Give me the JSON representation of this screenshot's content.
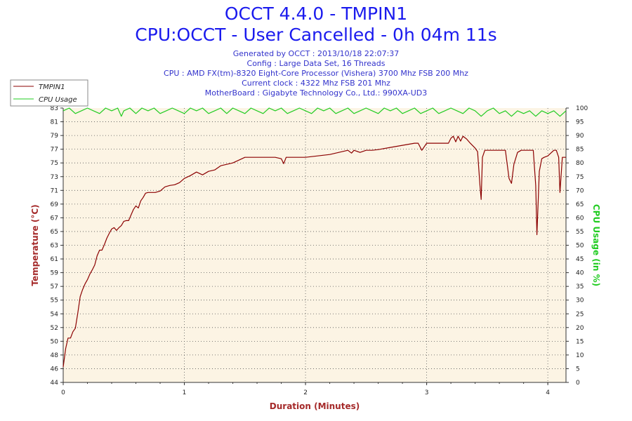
{
  "header": {
    "title": "OCCT 4.4.0 - TMPIN1",
    "subtitle": "CPU:OCCT - User Cancelled - 0h 04m 11s",
    "info": [
      "Generated by OCCT : 2013/10/18 22:07:37",
      "Config : Large Data Set, 16 Threads",
      "CPU : AMD FX(tm)-8320 Eight-Core Processor (Vishera) 3700 Mhz FSB 200 Mhz",
      "Current clock : 4322 Mhz FSB 201 Mhz",
      "MotherBoard : Gigabyte Technology Co., Ltd.: 990XA-UD3"
    ]
  },
  "colors": {
    "temperature": "#8b0000",
    "cpu_usage": "#22cc22",
    "plot_bg": "#fcf4e4",
    "title": "#1a1aee",
    "info": "#3333cc"
  },
  "chart_data": {
    "type": "line",
    "xlabel": "Duration (Minutes)",
    "ylabel": "Temperature (°C)",
    "y2label": "CPU Usage (in %)",
    "xlim": [
      0,
      4.15
    ],
    "ylim": [
      44,
      83
    ],
    "y2lim": [
      0,
      100
    ],
    "x_ticks": [
      "0",
      "1",
      "2",
      "3",
      "4"
    ],
    "y_ticks": [
      "44",
      "46",
      "48",
      "50",
      "52",
      "54",
      "55",
      "57",
      "59",
      "61",
      "63",
      "65",
      "67",
      "69",
      "71",
      "73",
      "75",
      "77",
      "79",
      "81",
      "83"
    ],
    "y2_ticks": [
      "0",
      "5",
      "10",
      "15",
      "20",
      "25",
      "30",
      "35",
      "40",
      "45",
      "50",
      "55",
      "60",
      "65",
      "70",
      "75",
      "80",
      "85",
      "90",
      "95",
      "100"
    ],
    "grid": true,
    "legend_position": "top-left",
    "series": [
      {
        "name": "TMPIN1",
        "axis": "left",
        "x": [
          0,
          0.02,
          0.04,
          0.06,
          0.08,
          0.1,
          0.12,
          0.14,
          0.16,
          0.18,
          0.2,
          0.22,
          0.24,
          0.26,
          0.28,
          0.3,
          0.32,
          0.34,
          0.36,
          0.38,
          0.4,
          0.42,
          0.44,
          0.46,
          0.48,
          0.5,
          0.52,
          0.54,
          0.56,
          0.58,
          0.6,
          0.62,
          0.64,
          0.66,
          0.68,
          0.7,
          0.72,
          0.74,
          0.76,
          0.8,
          0.84,
          0.88,
          0.92,
          0.96,
          1.0,
          1.05,
          1.1,
          1.15,
          1.2,
          1.25,
          1.3,
          1.35,
          1.4,
          1.45,
          1.5,
          1.55,
          1.6,
          1.65,
          1.7,
          1.75,
          1.8,
          1.82,
          1.84,
          1.9,
          1.95,
          2.0,
          2.1,
          2.2,
          2.3,
          2.35,
          2.38,
          2.4,
          2.45,
          2.5,
          2.55,
          2.6,
          2.7,
          2.8,
          2.9,
          2.93,
          2.96,
          3.0,
          3.05,
          3.1,
          3.15,
          3.18,
          3.2,
          3.22,
          3.24,
          3.26,
          3.28,
          3.3,
          3.33,
          3.36,
          3.4,
          3.42,
          3.44,
          3.45,
          3.46,
          3.48,
          3.5,
          3.55,
          3.6,
          3.65,
          3.68,
          3.7,
          3.72,
          3.75,
          3.78,
          3.8,
          3.85,
          3.88,
          3.9,
          3.91,
          3.93,
          3.95,
          3.97,
          4.0,
          4.05,
          4.07,
          4.09,
          4.1,
          4.12,
          4.15
        ],
        "y": [
          46.2,
          48.8,
          50.3,
          50.3,
          51.2,
          51.7,
          53.8,
          56.2,
          57.2,
          58.0,
          58.6,
          59.4,
          60.0,
          60.7,
          62.0,
          62.8,
          62.8,
          63.6,
          64.5,
          65.2,
          65.8,
          66.0,
          65.6,
          66.0,
          66.3,
          66.9,
          67.0,
          67.0,
          67.8,
          68.6,
          69.1,
          68.8,
          69.8,
          70.3,
          70.9,
          71.0,
          71.0,
          71.0,
          71.0,
          71.2,
          71.8,
          72.0,
          72.1,
          72.4,
          73.0,
          73.4,
          73.9,
          73.5,
          74.0,
          74.2,
          74.8,
          75.0,
          75.2,
          75.6,
          76.0,
          76.0,
          76.0,
          76.0,
          76.0,
          76.0,
          75.8,
          75.1,
          76.0,
          76.0,
          76.0,
          76.0,
          76.2,
          76.4,
          76.8,
          77.0,
          76.6,
          77.0,
          76.7,
          77.0,
          77.0,
          77.1,
          77.4,
          77.7,
          78.0,
          78.0,
          77.0,
          78.0,
          78.0,
          78.0,
          78.0,
          78.0,
          78.7,
          79.0,
          78.2,
          79.0,
          78.3,
          79.0,
          78.6,
          78.0,
          77.3,
          76.8,
          72.0,
          70.0,
          76.0,
          77.0,
          77.0,
          77.0,
          77.0,
          77.0,
          73.0,
          72.3,
          75.0,
          76.7,
          77.0,
          77.0,
          77.0,
          77.0,
          72.0,
          65.0,
          74.0,
          75.8,
          76.0,
          76.2,
          77.0,
          77.0,
          76.0,
          71.0,
          76.0,
          76.0
        ]
      },
      {
        "name": "CPU Usage",
        "axis": "right",
        "x": [
          0,
          0.05,
          0.1,
          0.15,
          0.2,
          0.25,
          0.3,
          0.35,
          0.4,
          0.45,
          0.48,
          0.5,
          0.55,
          0.6,
          0.65,
          0.7,
          0.75,
          0.8,
          0.85,
          0.9,
          0.95,
          1.0,
          1.05,
          1.1,
          1.15,
          1.2,
          1.25,
          1.3,
          1.35,
          1.4,
          1.45,
          1.5,
          1.55,
          1.6,
          1.65,
          1.7,
          1.75,
          1.8,
          1.85,
          1.9,
          1.95,
          2.0,
          2.05,
          2.1,
          2.15,
          2.2,
          2.25,
          2.3,
          2.35,
          2.4,
          2.45,
          2.5,
          2.55,
          2.6,
          2.65,
          2.7,
          2.75,
          2.8,
          2.85,
          2.9,
          2.95,
          3.0,
          3.05,
          3.1,
          3.15,
          3.2,
          3.25,
          3.3,
          3.35,
          3.4,
          3.45,
          3.5,
          3.55,
          3.6,
          3.65,
          3.7,
          3.75,
          3.8,
          3.85,
          3.9,
          3.95,
          4.0,
          4.05,
          4.1,
          4.15
        ],
        "y": [
          99,
          100,
          98,
          99,
          100,
          99,
          98,
          100,
          99,
          100,
          97,
          99,
          100,
          98,
          100,
          99,
          100,
          98,
          99,
          100,
          99,
          98,
          100,
          99,
          100,
          98,
          99,
          100,
          98,
          100,
          99,
          98,
          100,
          99,
          98,
          100,
          99,
          100,
          98,
          99,
          100,
          99,
          98,
          100,
          99,
          100,
          98,
          99,
          100,
          98,
          99,
          100,
          99,
          98,
          100,
          99,
          100,
          98,
          99,
          100,
          98,
          99,
          100,
          98,
          99,
          100,
          99,
          98,
          100,
          99,
          97,
          99,
          100,
          98,
          99,
          97,
          99,
          98,
          99,
          97,
          99,
          98,
          99,
          97,
          99
        ]
      }
    ]
  }
}
